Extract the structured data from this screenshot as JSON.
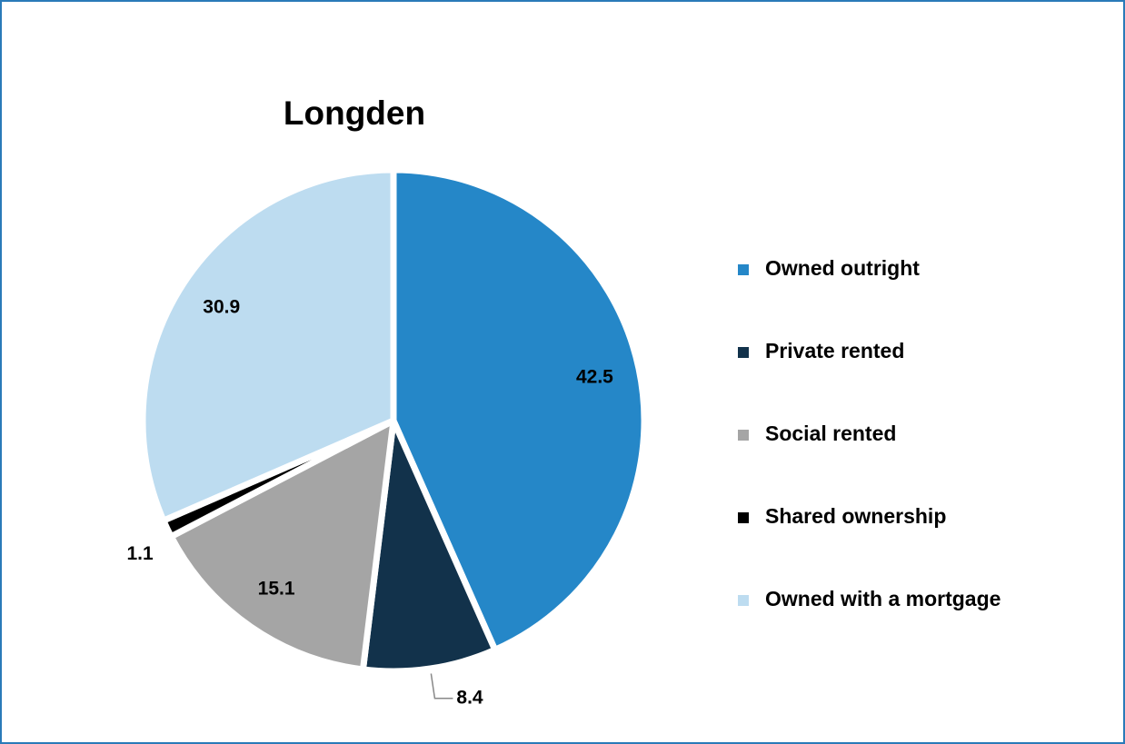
{
  "chart_data": {
    "type": "pie",
    "title": "Longden",
    "categories": [
      "Owned outright",
      "Private rented",
      "Social rented",
      "Shared ownership",
      "Owned with a mortgage"
    ],
    "values": [
      42.5,
      8.4,
      15.1,
      1.1,
      30.9
    ],
    "colors": [
      "#2587c8",
      "#12324b",
      "#a5a5a5",
      "#000000",
      "#bddcf0"
    ],
    "legend": "right"
  }
}
